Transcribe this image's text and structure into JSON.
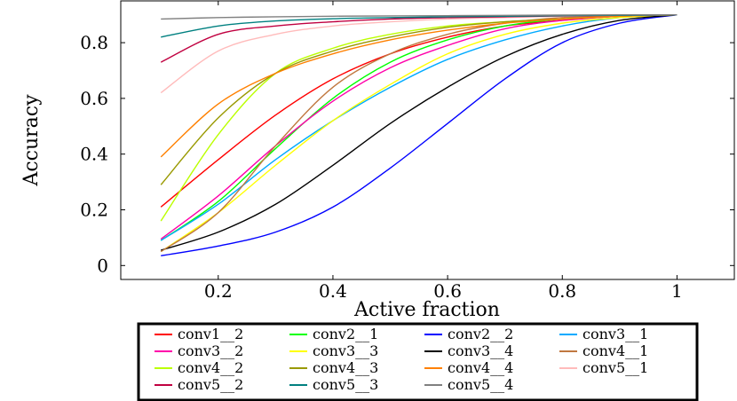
{
  "chart_data": {
    "type": "line",
    "title": "",
    "xlabel": "Active fraction",
    "ylabel": "Accuracy",
    "xlim": [
      0.03,
      1.1
    ],
    "ylim": [
      -0.05,
      0.95
    ],
    "xticks": [
      0.2,
      0.4,
      0.6,
      0.8,
      1
    ],
    "xtick_labels": [
      "0.2",
      "0.4",
      "0.6",
      "0.8",
      "1"
    ],
    "yticks": [
      0,
      0.2,
      0.4,
      0.6,
      0.8
    ],
    "ytick_labels": [
      "0",
      "0.2",
      "0.4",
      "0.6",
      "0.8"
    ],
    "grid": false,
    "legend_position": "below",
    "x": [
      0.1,
      0.2,
      0.3,
      0.4,
      0.5,
      0.6,
      0.7,
      0.8,
      0.9,
      1.0
    ],
    "series": [
      {
        "name": "conv1__2",
        "color": "#ff0000",
        "values": [
          0.21,
          0.38,
          0.54,
          0.67,
          0.76,
          0.82,
          0.86,
          0.88,
          0.895,
          0.9
        ]
      },
      {
        "name": "conv2__1",
        "color": "#00ff00",
        "values": [
          0.09,
          0.23,
          0.42,
          0.6,
          0.73,
          0.81,
          0.86,
          0.885,
          0.895,
          0.9
        ]
      },
      {
        "name": "conv2__2",
        "color": "#0000ff",
        "values": [
          0.035,
          0.07,
          0.12,
          0.21,
          0.35,
          0.51,
          0.67,
          0.8,
          0.87,
          0.9
        ]
      },
      {
        "name": "conv3__1",
        "color": "#00aaff",
        "values": [
          0.09,
          0.22,
          0.38,
          0.52,
          0.64,
          0.74,
          0.81,
          0.86,
          0.89,
          0.9
        ]
      },
      {
        "name": "conv3__2",
        "color": "#ff00aa",
        "values": [
          0.095,
          0.25,
          0.43,
          0.59,
          0.71,
          0.79,
          0.85,
          0.88,
          0.895,
          0.9
        ]
      },
      {
        "name": "conv3__3",
        "color": "#ffff00",
        "values": [
          0.05,
          0.19,
          0.36,
          0.52,
          0.65,
          0.76,
          0.83,
          0.87,
          0.89,
          0.9
        ]
      },
      {
        "name": "conv3__4",
        "color": "#000000",
        "values": [
          0.055,
          0.12,
          0.22,
          0.36,
          0.51,
          0.64,
          0.75,
          0.83,
          0.88,
          0.9
        ]
      },
      {
        "name": "conv4__1",
        "color": "#c07840",
        "values": [
          0.05,
          0.19,
          0.43,
          0.64,
          0.76,
          0.83,
          0.87,
          0.89,
          0.895,
          0.9
        ]
      },
      {
        "name": "conv4__2",
        "color": "#bbff00",
        "values": [
          0.16,
          0.47,
          0.69,
          0.78,
          0.83,
          0.86,
          0.875,
          0.885,
          0.895,
          0.9
        ]
      },
      {
        "name": "conv4__3",
        "color": "#999900",
        "values": [
          0.29,
          0.53,
          0.69,
          0.77,
          0.82,
          0.855,
          0.875,
          0.885,
          0.895,
          0.9
        ]
      },
      {
        "name": "conv4__4",
        "color": "#ff8000",
        "values": [
          0.39,
          0.58,
          0.69,
          0.76,
          0.81,
          0.845,
          0.87,
          0.885,
          0.895,
          0.9
        ]
      },
      {
        "name": "conv5__1",
        "color": "#ffbbbb",
        "values": [
          0.62,
          0.77,
          0.83,
          0.86,
          0.875,
          0.885,
          0.89,
          0.895,
          0.898,
          0.9
        ]
      },
      {
        "name": "conv5__2",
        "color": "#c00040",
        "values": [
          0.73,
          0.83,
          0.86,
          0.875,
          0.885,
          0.89,
          0.893,
          0.896,
          0.898,
          0.9
        ]
      },
      {
        "name": "conv5__3",
        "color": "#008080",
        "values": [
          0.82,
          0.86,
          0.878,
          0.886,
          0.89,
          0.893,
          0.895,
          0.897,
          0.898,
          0.9
        ]
      },
      {
        "name": "conv5__4",
        "color": "#808080",
        "values": [
          0.885,
          0.89,
          0.893,
          0.895,
          0.896,
          0.897,
          0.898,
          0.899,
          0.9,
          0.9
        ]
      }
    ]
  }
}
